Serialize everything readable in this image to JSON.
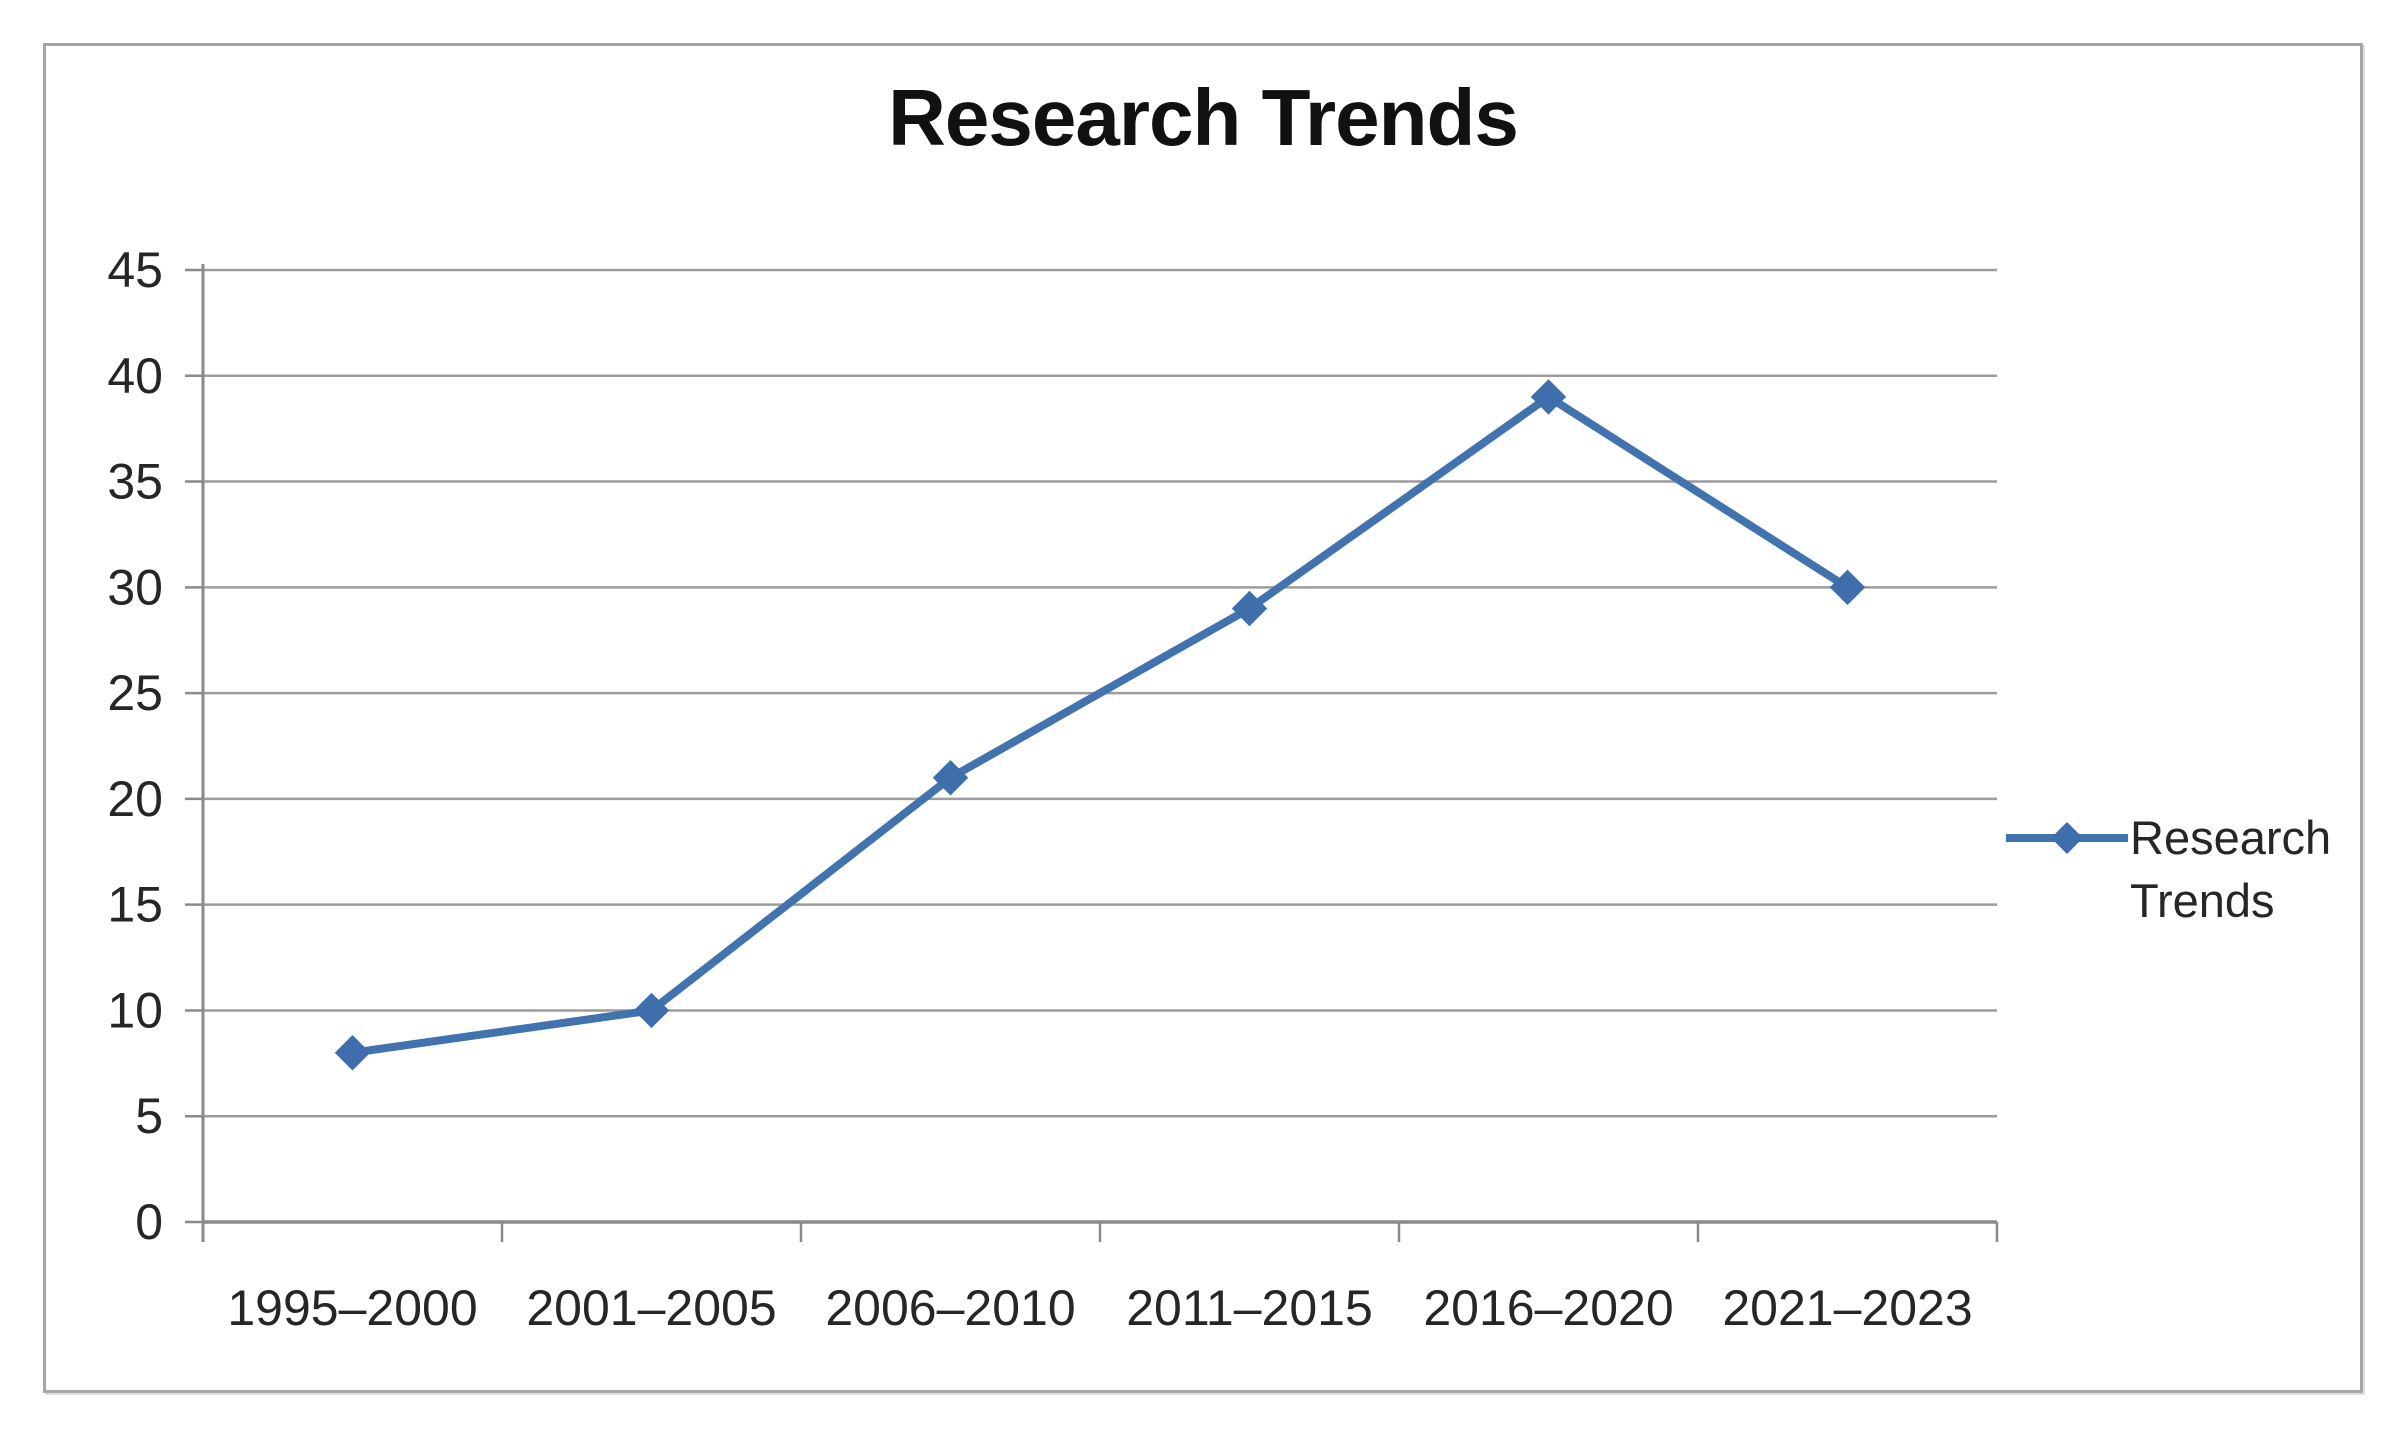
{
  "chart_data": {
    "type": "line",
    "title": "Research Trends",
    "categories": [
      "1995–2000",
      "2001–2005",
      "2006–2010",
      "2011–2015",
      "2016–2020",
      "2021–2023"
    ],
    "series": [
      {
        "name": "Research Trends",
        "values": [
          8,
          10,
          21,
          29,
          39,
          30
        ]
      }
    ],
    "xlabel": "",
    "ylabel": "",
    "ylim": [
      0,
      45
    ],
    "ytick_step": 5,
    "ytick_labels": [
      "0",
      "5",
      "10",
      "15",
      "20",
      "25",
      "30",
      "35",
      "40",
      "45"
    ],
    "grid": true,
    "marker": "diamond",
    "legend_position": "right",
    "legend_lines": [
      "Research",
      "Trends"
    ]
  },
  "colors": {
    "series": "#4173af",
    "marker": "#3e6eab",
    "grid": "#9c9c9c",
    "axis": "#8a8a8a",
    "tick_text": "#262626",
    "title_text": "#111111",
    "frame_border": "#a6a6a6"
  }
}
